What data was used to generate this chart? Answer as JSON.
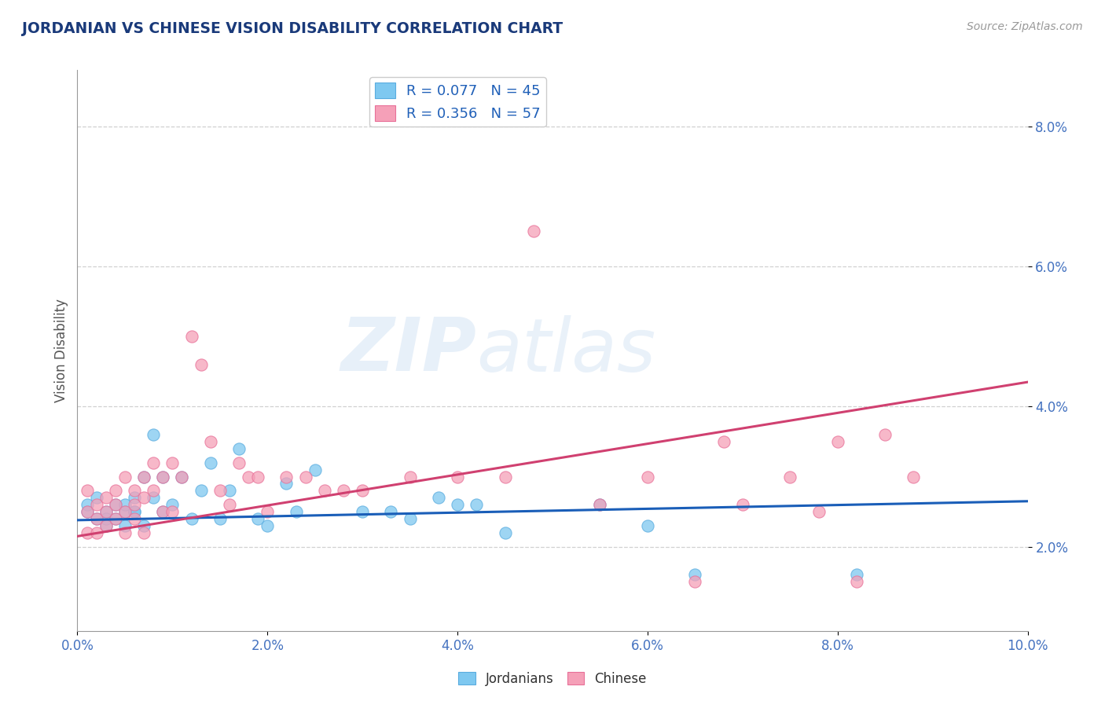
{
  "title": "JORDANIAN VS CHINESE VISION DISABILITY CORRELATION CHART",
  "source": "Source: ZipAtlas.com",
  "xlim": [
    0.0,
    0.1
  ],
  "ylim": [
    0.008,
    0.088
  ],
  "jordanian_color": "#7ec8f0",
  "chinese_color": "#f5a0b8",
  "jordanian_edge": "#5aacdf",
  "chinese_edge": "#e87098",
  "legend_line1": "R = 0.077   N = 45",
  "legend_line2": "R = 0.356   N = 57",
  "watermark_zip": "ZIP",
  "watermark_atlas": "atlas",
  "trend_jord_color": "#1a5eb8",
  "trend_chin_color": "#d04070",
  "jordanians_x": [
    0.001,
    0.001,
    0.002,
    0.002,
    0.003,
    0.003,
    0.003,
    0.004,
    0.004,
    0.005,
    0.005,
    0.005,
    0.006,
    0.006,
    0.006,
    0.007,
    0.007,
    0.008,
    0.008,
    0.009,
    0.009,
    0.01,
    0.011,
    0.012,
    0.013,
    0.014,
    0.015,
    0.016,
    0.017,
    0.019,
    0.02,
    0.022,
    0.023,
    0.025,
    0.03,
    0.033,
    0.035,
    0.038,
    0.04,
    0.042,
    0.045,
    0.055,
    0.06,
    0.065,
    0.082
  ],
  "jordanians_y": [
    0.025,
    0.026,
    0.024,
    0.027,
    0.025,
    0.023,
    0.024,
    0.026,
    0.024,
    0.025,
    0.023,
    0.026,
    0.025,
    0.027,
    0.025,
    0.03,
    0.023,
    0.036,
    0.027,
    0.025,
    0.03,
    0.026,
    0.03,
    0.024,
    0.028,
    0.032,
    0.024,
    0.028,
    0.034,
    0.024,
    0.023,
    0.029,
    0.025,
    0.031,
    0.025,
    0.025,
    0.024,
    0.027,
    0.026,
    0.026,
    0.022,
    0.026,
    0.023,
    0.016,
    0.016
  ],
  "chinese_x": [
    0.001,
    0.001,
    0.001,
    0.002,
    0.002,
    0.002,
    0.003,
    0.003,
    0.003,
    0.004,
    0.004,
    0.004,
    0.005,
    0.005,
    0.005,
    0.006,
    0.006,
    0.006,
    0.007,
    0.007,
    0.007,
    0.008,
    0.008,
    0.009,
    0.009,
    0.01,
    0.01,
    0.011,
    0.012,
    0.013,
    0.014,
    0.015,
    0.016,
    0.017,
    0.018,
    0.019,
    0.02,
    0.022,
    0.024,
    0.026,
    0.028,
    0.03,
    0.035,
    0.04,
    0.045,
    0.048,
    0.055,
    0.06,
    0.065,
    0.068,
    0.07,
    0.075,
    0.078,
    0.08,
    0.082,
    0.085,
    0.088
  ],
  "chinese_y": [
    0.025,
    0.028,
    0.022,
    0.026,
    0.024,
    0.022,
    0.027,
    0.025,
    0.023,
    0.026,
    0.024,
    0.028,
    0.025,
    0.022,
    0.03,
    0.026,
    0.028,
    0.024,
    0.03,
    0.027,
    0.022,
    0.032,
    0.028,
    0.025,
    0.03,
    0.025,
    0.032,
    0.03,
    0.05,
    0.046,
    0.035,
    0.028,
    0.026,
    0.032,
    0.03,
    0.03,
    0.025,
    0.03,
    0.03,
    0.028,
    0.028,
    0.028,
    0.03,
    0.03,
    0.03,
    0.065,
    0.026,
    0.03,
    0.015,
    0.035,
    0.026,
    0.03,
    0.025,
    0.035,
    0.015,
    0.036,
    0.03
  ],
  "jord_trend_x": [
    0.0,
    0.1
  ],
  "jord_trend_y": [
    0.0238,
    0.0265
  ],
  "chin_trend_x": [
    0.0,
    0.1
  ],
  "chin_trend_y": [
    0.0215,
    0.0435
  ]
}
